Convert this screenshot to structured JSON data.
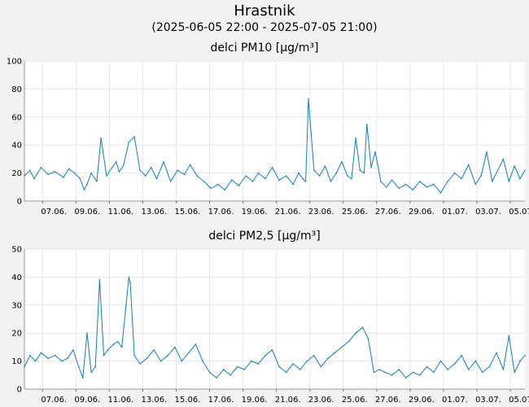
{
  "header": {
    "title": "Hrastnik",
    "subtitle": "(2025-06-05 22:00 - 2025-07-05 21:00)"
  },
  "colors": {
    "line": "#0a7fc0",
    "plot_bg": "#ffffff",
    "page_bg": "#f2f2f2",
    "grid": "#e6e6e6"
  },
  "chart_data": [
    {
      "type": "line",
      "title": "delci PM10 [µg/m³]",
      "x_range": [
        "2025-06-05 22:00",
        "2025-07-05 21:00"
      ],
      "ylim": [
        0,
        100
      ],
      "yticks": [
        0,
        20,
        40,
        60,
        80,
        100
      ],
      "grid": true,
      "xtick_labels": [
        "07.06.",
        "09.06.",
        "11.06.",
        "13.06.",
        "15.06.",
        "17.06.",
        "19.06.",
        "21.06.",
        "23.06.",
        "25.06.",
        "27.06.",
        "29.06.",
        "01.07.",
        "03.07.",
        "05.07."
      ],
      "series": [
        {
          "x": [
            "2025-06-05 22:00",
            "2025-06-06 06:00",
            "2025-06-06 12:00",
            "2025-06-06 22:00",
            "2025-06-07 08:00",
            "2025-06-07 18:00",
            "2025-06-08 06:00",
            "2025-06-08 14:00",
            "2025-06-08 22:00",
            "2025-06-09 06:00",
            "2025-06-09 12:00",
            "2025-06-09 16:00",
            "2025-06-09 22:00",
            "2025-06-10 06:00",
            "2025-06-10 12:00",
            "2025-06-10 20:00",
            "2025-06-11 04:00",
            "2025-06-11 10:00",
            "2025-06-11 14:00",
            "2025-06-11 20:00",
            "2025-06-12 04:00",
            "2025-06-12 12:00",
            "2025-06-12 20:00",
            "2025-06-13 04:00",
            "2025-06-13 12:00",
            "2025-06-13 20:00",
            "2025-06-14 06:00",
            "2025-06-14 16:00",
            "2025-06-15 02:00",
            "2025-06-15 12:00",
            "2025-06-15 20:00",
            "2025-06-16 06:00",
            "2025-06-16 16:00",
            "2025-06-17 02:00",
            "2025-06-17 12:00",
            "2025-06-17 22:00",
            "2025-06-18 08:00",
            "2025-06-18 18:00",
            "2025-06-19 04:00",
            "2025-06-19 14:00",
            "2025-06-19 22:00",
            "2025-06-20 08:00",
            "2025-06-20 18:00",
            "2025-06-21 04:00",
            "2025-06-21 14:00",
            "2025-06-22 00:00",
            "2025-06-22 08:00",
            "2025-06-22 14:00",
            "2025-06-22 18:00",
            "2025-06-22 22:00",
            "2025-06-23 06:00",
            "2025-06-23 14:00",
            "2025-06-23 22:00",
            "2025-06-24 06:00",
            "2025-06-24 14:00",
            "2025-06-24 22:00",
            "2025-06-25 06:00",
            "2025-06-25 12:00",
            "2025-06-25 18:00",
            "2025-06-26 00:00",
            "2025-06-26 06:00",
            "2025-06-26 10:00",
            "2025-06-26 16:00",
            "2025-06-26 22:00",
            "2025-06-27 06:00",
            "2025-06-27 14:00",
            "2025-06-27 22:00",
            "2025-06-28 08:00",
            "2025-06-28 18:00",
            "2025-06-29 04:00",
            "2025-06-29 14:00",
            "2025-06-30 00:00",
            "2025-06-30 10:00",
            "2025-06-30 20:00",
            "2025-07-01 06:00",
            "2025-07-01 16:00",
            "2025-07-02 02:00",
            "2025-07-02 12:00",
            "2025-07-02 22:00",
            "2025-07-03 06:00",
            "2025-07-03 14:00",
            "2025-07-03 22:00",
            "2025-07-04 06:00",
            "2025-07-04 14:00",
            "2025-07-04 22:00",
            "2025-07-05 06:00",
            "2025-07-05 14:00",
            "2025-07-05 21:00"
          ],
          "y": [
            18,
            22,
            16,
            24,
            19,
            21,
            17,
            23,
            20,
            16,
            8,
            12,
            20,
            14,
            45,
            18,
            24,
            28,
            21,
            25,
            42,
            46,
            22,
            18,
            24,
            16,
            28,
            14,
            22,
            19,
            26,
            18,
            14,
            9,
            12,
            8,
            15,
            11,
            18,
            14,
            20,
            16,
            24,
            15,
            18,
            12,
            20,
            16,
            14,
            73,
            22,
            18,
            25,
            14,
            20,
            28,
            18,
            16,
            45,
            22,
            20,
            55,
            24,
            35,
            14,
            10,
            15,
            9,
            12,
            8,
            14,
            10,
            12,
            6,
            14,
            20,
            16,
            26,
            12,
            18,
            35,
            14,
            22,
            30,
            14,
            25,
            16,
            22
          ],
          "values": [
            18,
            22,
            16,
            24,
            19,
            21,
            17,
            23,
            20,
            16,
            8,
            12,
            20,
            14,
            45,
            18,
            24,
            28,
            21,
            25,
            42,
            46,
            22,
            18,
            24,
            16,
            28,
            14,
            22,
            19,
            26,
            18,
            14,
            9,
            12,
            8,
            15,
            11,
            18,
            14,
            20,
            16,
            24,
            15,
            18,
            12,
            20,
            16,
            14,
            73,
            22,
            18,
            25,
            14,
            20,
            28,
            18,
            16,
            45,
            22,
            20,
            55,
            24,
            35,
            14,
            10,
            15,
            9,
            12,
            8,
            14,
            10,
            12,
            6,
            14,
            20,
            16,
            26,
            12,
            18,
            35,
            14,
            22,
            30,
            14,
            25,
            16,
            22
          ]
        }
      ]
    },
    {
      "type": "line",
      "title": "delci PM2,5 [µg/m³]",
      "x_range": [
        "2025-06-05 22:00",
        "2025-07-05 21:00"
      ],
      "ylim": [
        0,
        50
      ],
      "yticks": [
        0,
        10,
        20,
        30,
        40,
        50
      ],
      "grid": true,
      "xtick_labels": [
        "07.06.",
        "09.06.",
        "11.06.",
        "13.06.",
        "15.06.",
        "17.06.",
        "19.06.",
        "21.06.",
        "23.06.",
        "25.06.",
        "27.06.",
        "29.06.",
        "01.07.",
        "03.07.",
        "05.07."
      ],
      "series": [
        {
          "x": [
            "2025-06-05 22:00",
            "2025-06-06 06:00",
            "2025-06-06 14:00",
            "2025-06-06 22:00",
            "2025-06-07 08:00",
            "2025-06-07 18:00",
            "2025-06-08 04:00",
            "2025-06-08 12:00",
            "2025-06-08 20:00",
            "2025-06-09 04:00",
            "2025-06-09 10:00",
            "2025-06-09 16:00",
            "2025-06-09 22:00",
            "2025-06-10 04:00",
            "2025-06-10 10:00",
            "2025-06-10 16:00",
            "2025-06-10 22:00",
            "2025-06-11 06:00",
            "2025-06-11 12:00",
            "2025-06-11 18:00",
            "2025-06-12 00:00",
            "2025-06-12 04:00",
            "2025-06-12 06:00",
            "2025-06-12 12:00",
            "2025-06-12 20:00",
            "2025-06-13 06:00",
            "2025-06-13 16:00",
            "2025-06-14 02:00",
            "2025-06-14 12:00",
            "2025-06-14 22:00",
            "2025-06-15 08:00",
            "2025-06-15 18:00",
            "2025-06-16 04:00",
            "2025-06-16 14:00",
            "2025-06-17 00:00",
            "2025-06-17 10:00",
            "2025-06-17 20:00",
            "2025-06-18 06:00",
            "2025-06-18 16:00",
            "2025-06-19 02:00",
            "2025-06-19 12:00",
            "2025-06-19 22:00",
            "2025-06-20 08:00",
            "2025-06-20 18:00",
            "2025-06-21 04:00",
            "2025-06-21 14:00",
            "2025-06-22 00:00",
            "2025-06-22 10:00",
            "2025-06-22 20:00",
            "2025-06-23 06:00",
            "2025-06-23 16:00",
            "2025-06-24 02:00",
            "2025-06-24 12:00",
            "2025-06-24 22:00",
            "2025-06-25 08:00",
            "2025-06-25 18:00",
            "2025-06-26 04:00",
            "2025-06-26 12:00",
            "2025-06-26 20:00",
            "2025-06-27 04:00",
            "2025-06-27 12:00",
            "2025-06-27 22:00",
            "2025-06-28 08:00",
            "2025-06-28 18:00",
            "2025-06-29 04:00",
            "2025-06-29 14:00",
            "2025-06-30 00:00",
            "2025-06-30 10:00",
            "2025-06-30 20:00",
            "2025-07-01 06:00",
            "2025-07-01 16:00",
            "2025-07-02 02:00",
            "2025-07-02 12:00",
            "2025-07-02 22:00",
            "2025-07-03 08:00",
            "2025-07-03 18:00",
            "2025-07-04 04:00",
            "2025-07-04 14:00",
            "2025-07-04 22:00",
            "2025-07-05 06:00",
            "2025-07-05 14:00",
            "2025-07-05 21:00"
          ],
          "y": [
            8,
            12,
            10,
            13,
            11,
            12,
            10,
            11,
            14,
            8,
            4,
            20,
            6,
            8,
            39,
            12,
            14,
            16,
            17,
            15,
            30,
            40,
            38,
            12,
            9,
            11,
            14,
            10,
            12,
            15,
            10,
            13,
            16,
            10,
            6,
            4,
            7,
            5,
            8,
            7,
            10,
            9,
            12,
            14,
            8,
            6,
            9,
            7,
            10,
            12,
            8,
            11,
            13,
            15,
            17,
            20,
            22,
            18,
            6,
            7,
            6,
            5,
            7,
            4,
            6,
            5,
            8,
            6,
            10,
            7,
            9,
            12,
            7,
            10,
            6,
            8,
            13,
            7,
            19,
            6,
            10,
            12
          ],
          "values": [
            8,
            12,
            10,
            13,
            11,
            12,
            10,
            11,
            14,
            8,
            4,
            20,
            6,
            8,
            39,
            12,
            14,
            16,
            17,
            15,
            30,
            40,
            38,
            12,
            9,
            11,
            14,
            10,
            12,
            15,
            10,
            13,
            16,
            10,
            6,
            4,
            7,
            5,
            8,
            7,
            10,
            9,
            12,
            14,
            8,
            6,
            9,
            7,
            10,
            12,
            8,
            11,
            13,
            15,
            17,
            20,
            22,
            18,
            6,
            7,
            6,
            5,
            7,
            4,
            6,
            5,
            8,
            6,
            10,
            7,
            9,
            12,
            7,
            10,
            6,
            8,
            13,
            7,
            19,
            6,
            10,
            12
          ]
        }
      ]
    }
  ]
}
